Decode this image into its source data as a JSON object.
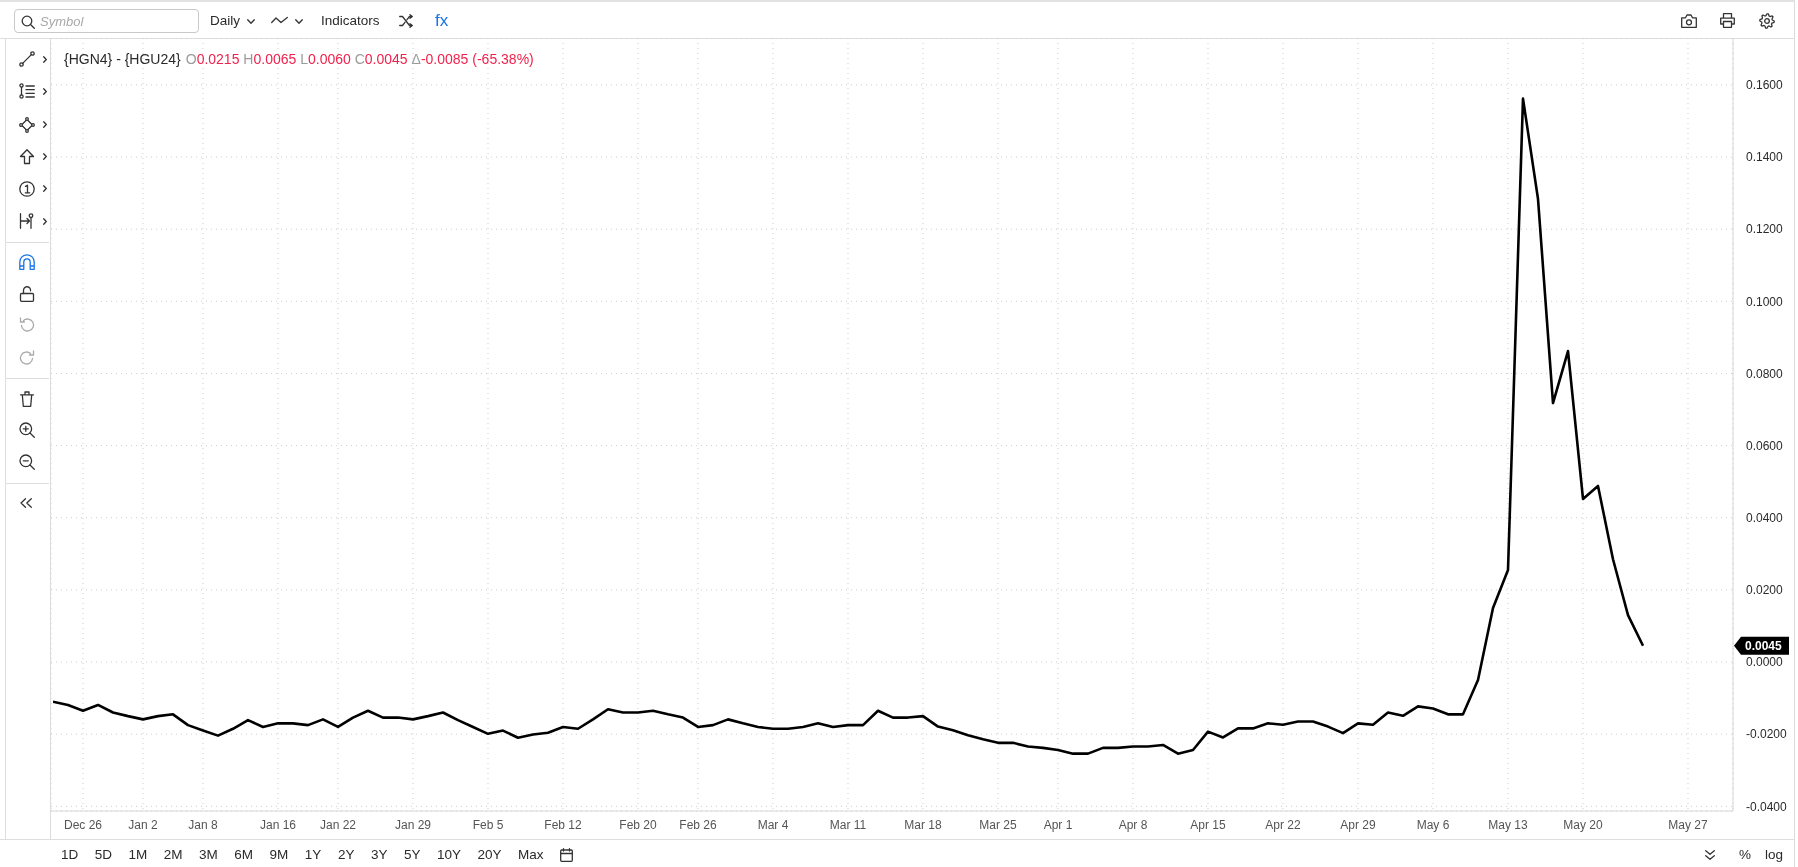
{
  "chart_data": {
    "type": "line",
    "title": "{HGN4} - {HGU24}",
    "subtitle": "O0.0215 H0.0065 L0.0060 C0.0045 Δ-0.0085 (-65.38%)",
    "annotations": [
      "Symbol",
      "Daily",
      "Indicators",
      "fx",
      "1D",
      "5D",
      "1M",
      "2M",
      "3M",
      "6M",
      "9M",
      "1Y",
      "2Y",
      "3Y",
      "5Y",
      "10Y",
      "20Y",
      "Max",
      "%",
      "log",
      "0.0045"
    ],
    "categories": [
      null,
      null,
      "Dec 26",
      null,
      null,
      null,
      "Jan 2",
      null,
      null,
      null,
      "Jan 8",
      null,
      null,
      null,
      null,
      "Jan 16",
      null,
      null,
      null,
      "Jan 22",
      null,
      null,
      null,
      null,
      "Jan 29",
      null,
      null,
      null,
      null,
      "Feb 5",
      null,
      null,
      null,
      null,
      "Feb 12",
      null,
      null,
      null,
      null,
      "Feb 20",
      null,
      null,
      null,
      "Feb 26",
      null,
      null,
      null,
      null,
      "Mar 4",
      null,
      null,
      null,
      null,
      "Mar 11",
      null,
      null,
      null,
      null,
      "Mar 18",
      null,
      null,
      null,
      null,
      "Mar 25",
      null,
      null,
      null,
      "Apr 1",
      null,
      null,
      null,
      null,
      "Apr 8",
      null,
      null,
      null,
      null,
      "Apr 15",
      null,
      null,
      null,
      null,
      "Apr 22",
      null,
      null,
      null,
      null,
      "Apr 29",
      null,
      null,
      null,
      null,
      "May 6",
      null,
      null,
      null,
      null,
      "May 13",
      null,
      null,
      null,
      null,
      "May 20",
      null,
      null,
      null,
      null,
      null,
      null,
      "May 27",
      null,
      null,
      null
    ],
    "values": [
      -0.011,
      -0.0119,
      -0.0135,
      -0.0119,
      -0.014,
      -0.015,
      -0.0159,
      -0.015,
      -0.0145,
      -0.0175,
      -0.019,
      -0.0204,
      -0.0185,
      -0.0161,
      -0.018,
      -0.017,
      -0.017,
      -0.0175,
      -0.0159,
      -0.018,
      -0.0154,
      -0.0135,
      -0.0154,
      -0.0154,
      -0.0159,
      -0.015,
      -0.014,
      -0.0161,
      -0.018,
      -0.0199,
      -0.019,
      -0.021,
      -0.0201,
      -0.0196,
      -0.018,
      -0.0185,
      -0.0159,
      -0.0131,
      -0.014,
      -0.014,
      -0.0135,
      -0.0145,
      -0.0154,
      -0.018,
      -0.0175,
      -0.0159,
      -0.017,
      -0.018,
      -0.0185,
      -0.0185,
      -0.018,
      -0.017,
      -0.018,
      -0.0175,
      -0.0175,
      -0.0135,
      -0.0154,
      -0.0154,
      -0.015,
      -0.0179,
      -0.0189,
      -0.0203,
      -0.0214,
      -0.0224,
      -0.0224,
      -0.0234,
      -0.0238,
      -0.0244,
      -0.0254,
      -0.0254,
      -0.0238,
      -0.0238,
      -0.0234,
      -0.0234,
      -0.023,
      -0.0254,
      -0.0244,
      -0.0193,
      -0.0209,
      -0.0184,
      -0.0184,
      -0.017,
      -0.0174,
      -0.0165,
      -0.0165,
      -0.0179,
      -0.0197,
      -0.017,
      -0.0174,
      -0.014,
      -0.0149,
      -0.0123,
      -0.0129,
      -0.0145,
      -0.0145,
      -0.005,
      0.015,
      0.0255,
      0.1562,
      0.1284,
      0.0718,
      0.0862,
      0.0452,
      0.0488,
      0.0285,
      0.013,
      0.0045,
      null,
      null,
      null,
      null,
      null,
      null
    ],
    "color": "#000000",
    "ylim": [
      -0.0413,
      0.173
    ],
    "yticks": [
      {
        "value": -0.04,
        "label": "-0.0400"
      },
      {
        "value": -0.02,
        "label": "-0.0200"
      },
      {
        "value": 0,
        "label": "0.0000"
      },
      {
        "value": 0.02,
        "label": "0.0200"
      },
      {
        "value": 0.04,
        "label": "0.0400"
      },
      {
        "value": 0.06,
        "label": "0.0600"
      },
      {
        "value": 0.08,
        "label": "0.0800"
      },
      {
        "value": 0.1,
        "label": "0.1000"
      },
      {
        "value": 0.12,
        "label": "0.1200"
      },
      {
        "value": 0.14,
        "label": "0.1400"
      },
      {
        "value": 0.16,
        "label": "0.1600"
      }
    ],
    "grid": true
  }
}
